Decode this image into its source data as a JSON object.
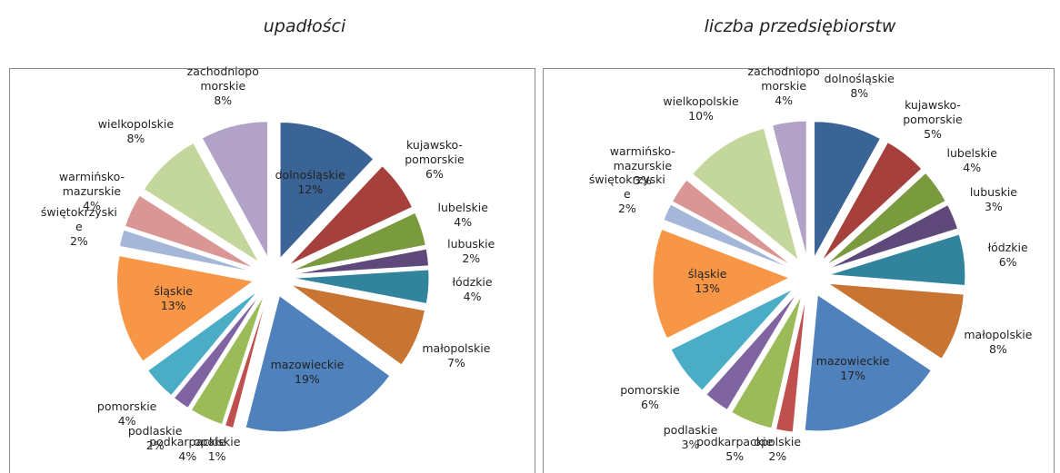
{
  "chart_data": [
    {
      "type": "pie",
      "title": "upadłości",
      "categories": [
        "dolnośląskie",
        "kujawsko-pomorskie",
        "lubelskie",
        "lubuskie",
        "łódzkie",
        "małopolskie",
        "mazowieckie",
        "opolskie",
        "podkarpackie",
        "podlaskie",
        "pomorskie",
        "śląskie",
        "świętokrzyskie",
        "warmińsko-mazurskie",
        "wielkopolskie",
        "zachodniopomorskie"
      ],
      "values": [
        12,
        6,
        4,
        2,
        4,
        7,
        19,
        1,
        4,
        2,
        4,
        13,
        2,
        4,
        8,
        8
      ],
      "value_labels": [
        "12%",
        "6%",
        "4%",
        "2%",
        "4%",
        "7%",
        "19%",
        "1%",
        "4%",
        "2%",
        "4%",
        "13%",
        "2%",
        "4%",
        "8%",
        "8%"
      ],
      "colors": [
        "#3B6496",
        "#A5403C",
        "#7A9A3E",
        "#5F497A",
        "#31849B",
        "#C87533",
        "#4F81BD",
        "#C0504D",
        "#9BBB59",
        "#8064A2",
        "#4BACC6",
        "#F79646",
        "#A5B7D8",
        "#D99694",
        "#C3D69B",
        "#B3A2C7"
      ]
    },
    {
      "type": "pie",
      "title": "liczba przedsiębiorstw",
      "categories": [
        "dolnośląskie",
        "kujawsko-pomorskie",
        "lubelskie",
        "lubuskie",
        "łódzkie",
        "małopolskie",
        "mazowieckie",
        "opolskie",
        "podkarpackie",
        "podlaskie",
        "pomorskie",
        "śląskie",
        "świętokrzyskie",
        "warmińsko-mazurskie",
        "wielkopolskie",
        "zachodniopomorskie"
      ],
      "values": [
        8,
        5,
        4,
        3,
        6,
        8,
        17,
        2,
        5,
        3,
        6,
        13,
        2,
        3,
        10,
        4
      ],
      "value_labels": [
        "8%",
        "5%",
        "4%",
        "3%",
        "6%",
        "8%",
        "17%",
        "2%",
        "5%",
        "3%",
        "6%",
        "13%",
        "2%",
        "3%",
        "10%",
        "4%"
      ],
      "colors": [
        "#3B6496",
        "#A5403C",
        "#7A9A3E",
        "#5F497A",
        "#31849B",
        "#C87533",
        "#4F81BD",
        "#C0504D",
        "#9BBB59",
        "#8064A2",
        "#4BACC6",
        "#F79646",
        "#A5B7D8",
        "#D99694",
        "#C3D69B",
        "#B3A2C7"
      ]
    }
  ]
}
